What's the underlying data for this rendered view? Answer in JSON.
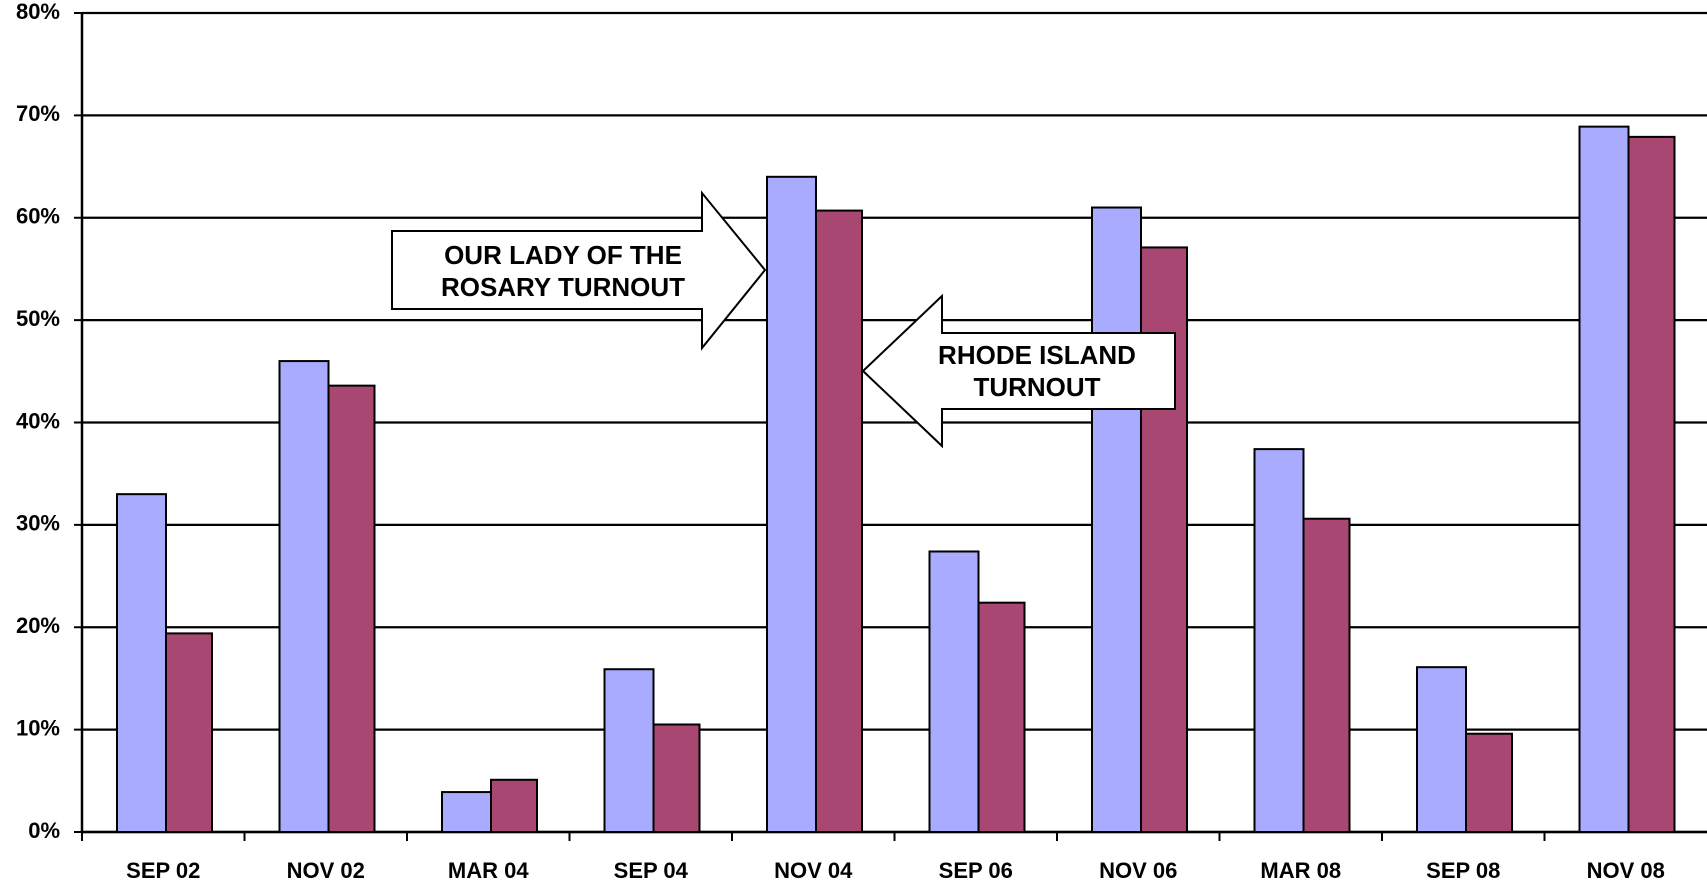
{
  "chart_data": {
    "type": "bar",
    "categories": [
      "SEP 02",
      "NOV 02",
      "MAR 04",
      "SEP 04",
      "NOV 04",
      "SEP 06",
      "NOV 06",
      "MAR 08",
      "SEP 08",
      "NOV 08"
    ],
    "series": [
      {
        "name": "OUR LADY OF THE ROSARY TURNOUT",
        "color": "#a9abff",
        "values": [
          33,
          46,
          3.9,
          15.9,
          64,
          27.4,
          61,
          37.4,
          16.1,
          68.9
        ]
      },
      {
        "name": "RHODE ISLAND TURNOUT",
        "color": "#a84872",
        "values": [
          19.4,
          43.6,
          5.1,
          10.5,
          60.7,
          22.4,
          57.1,
          30.6,
          9.6,
          67.9
        ]
      }
    ],
    "ylim": [
      0,
      80
    ],
    "yticks": [
      {
        "value": 0,
        "label": "0%"
      },
      {
        "value": 10,
        "label": "10%"
      },
      {
        "value": 20,
        "label": "20%"
      },
      {
        "value": 30,
        "label": "30%"
      },
      {
        "value": 40,
        "label": "40%"
      },
      {
        "value": 50,
        "label": "50%"
      },
      {
        "value": 60,
        "label": "60%"
      },
      {
        "value": 70,
        "label": "70%"
      },
      {
        "value": 80,
        "label": "80%"
      }
    ],
    "grid": true
  }
}
